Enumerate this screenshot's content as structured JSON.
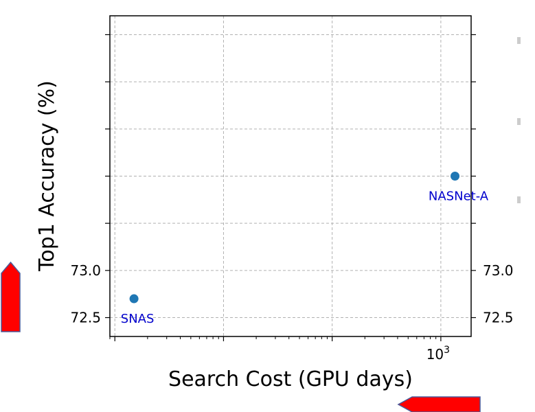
{
  "colors": {
    "point": "#1f77b4",
    "annotation": "#0000cc",
    "grid": "#b0b0b0",
    "arrow_fill": "#ff0000",
    "arrow_stroke": "#4a5a9a"
  },
  "chart_data": {
    "type": "scatter",
    "title": "",
    "xlabel": "Search Cost (GPU days)",
    "ylabel": "Top1 Accuracy (%)",
    "xscale": "log",
    "xlim": [
      0.9,
      1900
    ],
    "ylim": [
      72.3,
      75.7
    ],
    "grid": true,
    "legend": "none",
    "x_ticks": [
      {
        "value": 1000,
        "label_base": "10",
        "label_exp": "3"
      }
    ],
    "y_ticks": [
      {
        "value": 72.5,
        "label": "72.5"
      },
      {
        "value": 73.0,
        "label": "73.0"
      },
      {
        "value": 73.5,
        "label": ""
      },
      {
        "value": 74.0,
        "label": ""
      },
      {
        "value": 74.5,
        "label": ""
      },
      {
        "value": 75.0,
        "label": ""
      },
      {
        "value": 75.5,
        "label": ""
      }
    ],
    "points": [
      {
        "name": "SNAS",
        "x": 1.5,
        "y": 72.7
      },
      {
        "name": "NASNet-A",
        "x": 1350,
        "y": 74.0
      }
    ]
  },
  "decorations": {
    "left_arrow": "up-arrow",
    "bottom_arrow": "left-arrow"
  }
}
